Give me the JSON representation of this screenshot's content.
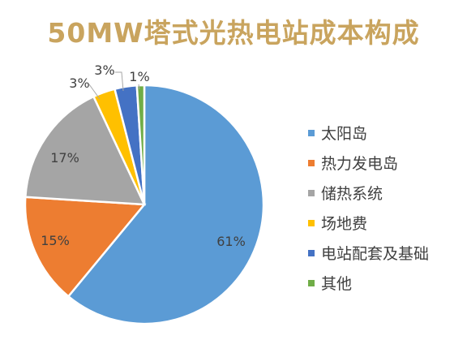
{
  "chart_data": {
    "type": "pie",
    "title": "50MW塔式光热电站成本构成",
    "categories": [
      "太阳岛",
      "热力发电岛",
      "储热系统",
      "场地费",
      "电站配套及基础",
      "其他"
    ],
    "values": [
      61,
      15,
      17,
      3,
      3,
      1
    ],
    "labels": [
      "61%",
      "15%",
      "17%",
      "3%",
      "3%",
      "1%"
    ],
    "colors": [
      "#5b9bd5",
      "#ed7d31",
      "#a5a5a5",
      "#ffc000",
      "#4472c4",
      "#70ad47"
    ],
    "legend_position": "right"
  }
}
